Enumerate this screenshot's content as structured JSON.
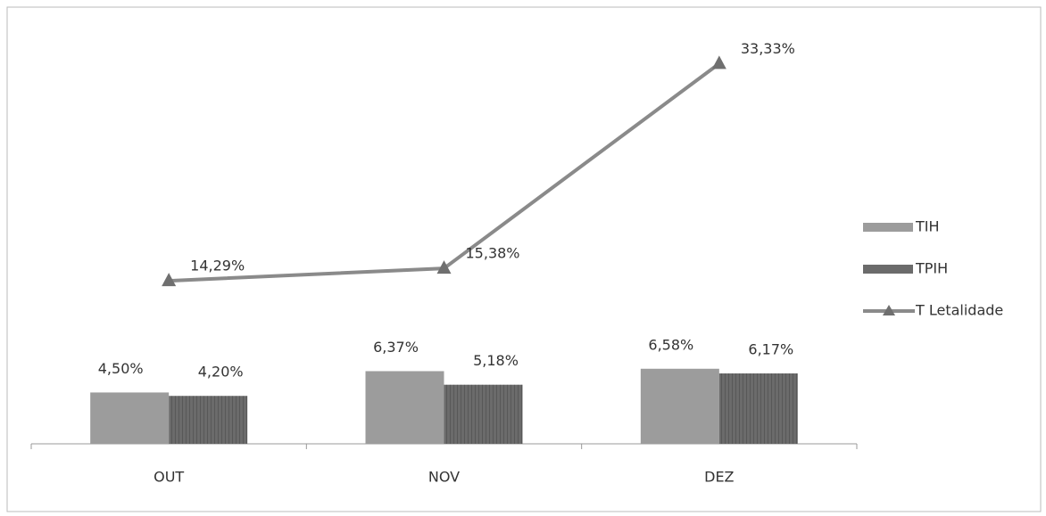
{
  "chart_data": {
    "type": "bar",
    "categories": [
      "OUT",
      "NOV",
      "DEZ"
    ],
    "ylim": [
      0,
      35
    ],
    "series": [
      {
        "name": "TIH",
        "type": "bar",
        "color": "#9c9c9c",
        "values": [
          4.5,
          6.37,
          6.58
        ],
        "value_labels": [
          "4,50%",
          "6,37%",
          "6,58%"
        ]
      },
      {
        "name": "TPIH",
        "type": "bar",
        "color": "#6b6b6b",
        "values": [
          4.2,
          5.18,
          6.17
        ],
        "value_labels": [
          "4,20%",
          "5,18%",
          "6,17%"
        ]
      },
      {
        "name": "T Letalidade",
        "type": "line",
        "color": "#8a8a8a",
        "values": [
          14.29,
          15.38,
          33.33
        ],
        "value_labels": [
          "14,29%",
          "15,38%",
          "33,33%"
        ]
      }
    ]
  }
}
